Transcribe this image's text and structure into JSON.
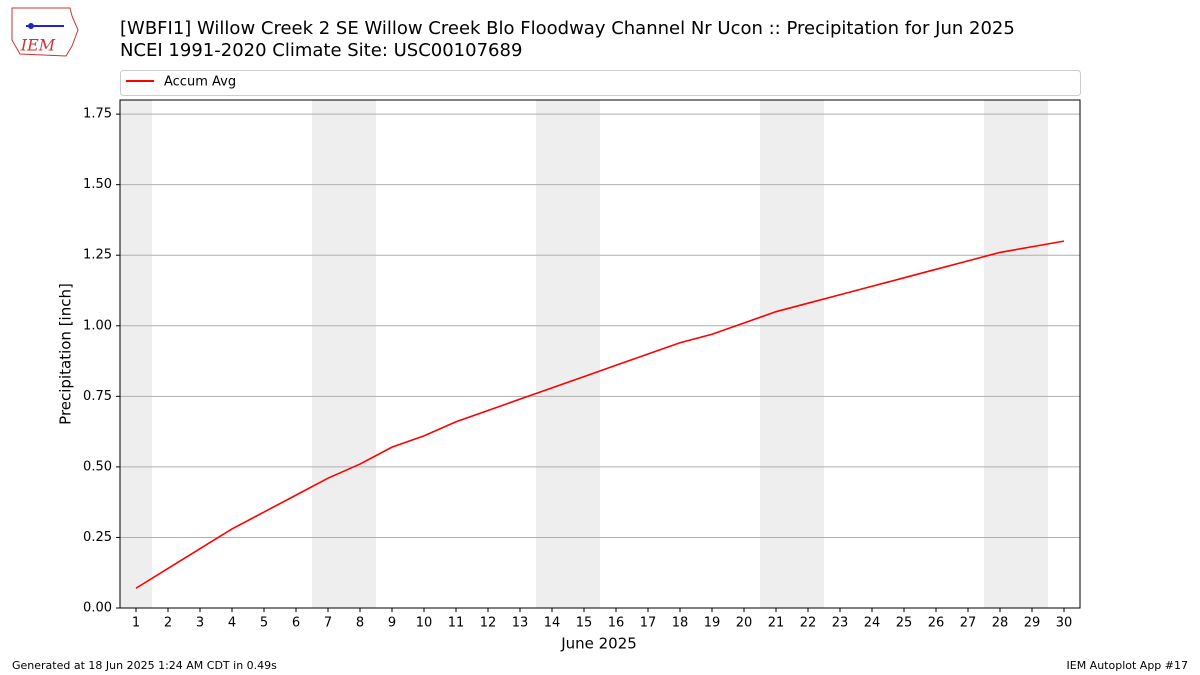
{
  "logo": "IEM",
  "footer_left": "Generated at 18 Jun 2025 1:24 AM CDT in 0.49s",
  "footer_right": "IEM Autoplot App #17",
  "chart_data": {
    "type": "line",
    "title": "[WBFI1] Willow Creek 2 SE Willow Creek Blo Floodway Channel Nr Ucon :: Precipitation for Jun 2025",
    "subtitle": "NCEI 1991-2020 Climate Site: USC00107689",
    "x_label": "June 2025",
    "y_label": "Precipitation [inch]",
    "x": [
      1,
      2,
      3,
      4,
      5,
      6,
      7,
      8,
      9,
      10,
      11,
      12,
      13,
      14,
      15,
      16,
      17,
      18,
      19,
      20,
      21,
      22,
      23,
      24,
      25,
      26,
      27,
      28,
      29,
      30
    ],
    "series": [
      {
        "name": "Accum Avg",
        "color": "#ff0000",
        "values": [
          0.07,
          0.14,
          0.21,
          0.28,
          0.34,
          0.4,
          0.46,
          0.51,
          0.57,
          0.61,
          0.66,
          0.7,
          0.74,
          0.78,
          0.82,
          0.86,
          0.9,
          0.94,
          0.97,
          1.01,
          1.05,
          1.08,
          1.11,
          1.14,
          1.17,
          1.2,
          1.23,
          1.26,
          1.28,
          1.3
        ]
      }
    ],
    "shaded_spans": [
      [
        0.5,
        1.5
      ],
      [
        6.5,
        8.5
      ],
      [
        13.5,
        15.5
      ],
      [
        20.5,
        22.5
      ],
      [
        27.5,
        29.5
      ]
    ],
    "shade_color": "#eeeeee",
    "xlim": [
      0.5,
      30.5
    ],
    "ylim": [
      0,
      1.8
    ],
    "xticks": [
      1,
      2,
      3,
      4,
      5,
      6,
      7,
      8,
      9,
      10,
      11,
      12,
      13,
      14,
      15,
      16,
      17,
      18,
      19,
      20,
      21,
      22,
      23,
      24,
      25,
      26,
      27,
      28,
      29,
      30
    ],
    "yticks": [
      {
        "value": 0,
        "label": "0.00"
      },
      {
        "value": 0.25,
        "label": "0.25"
      },
      {
        "value": 0.5,
        "label": "0.50"
      },
      {
        "value": 0.75,
        "label": "0.75"
      },
      {
        "value": 1,
        "label": "1.00"
      },
      {
        "value": 1.25,
        "label": "1.25"
      },
      {
        "value": 1.5,
        "label": "1.50"
      },
      {
        "value": 1.75,
        "label": "1.75"
      }
    ],
    "grid": "y",
    "legend": "top"
  }
}
